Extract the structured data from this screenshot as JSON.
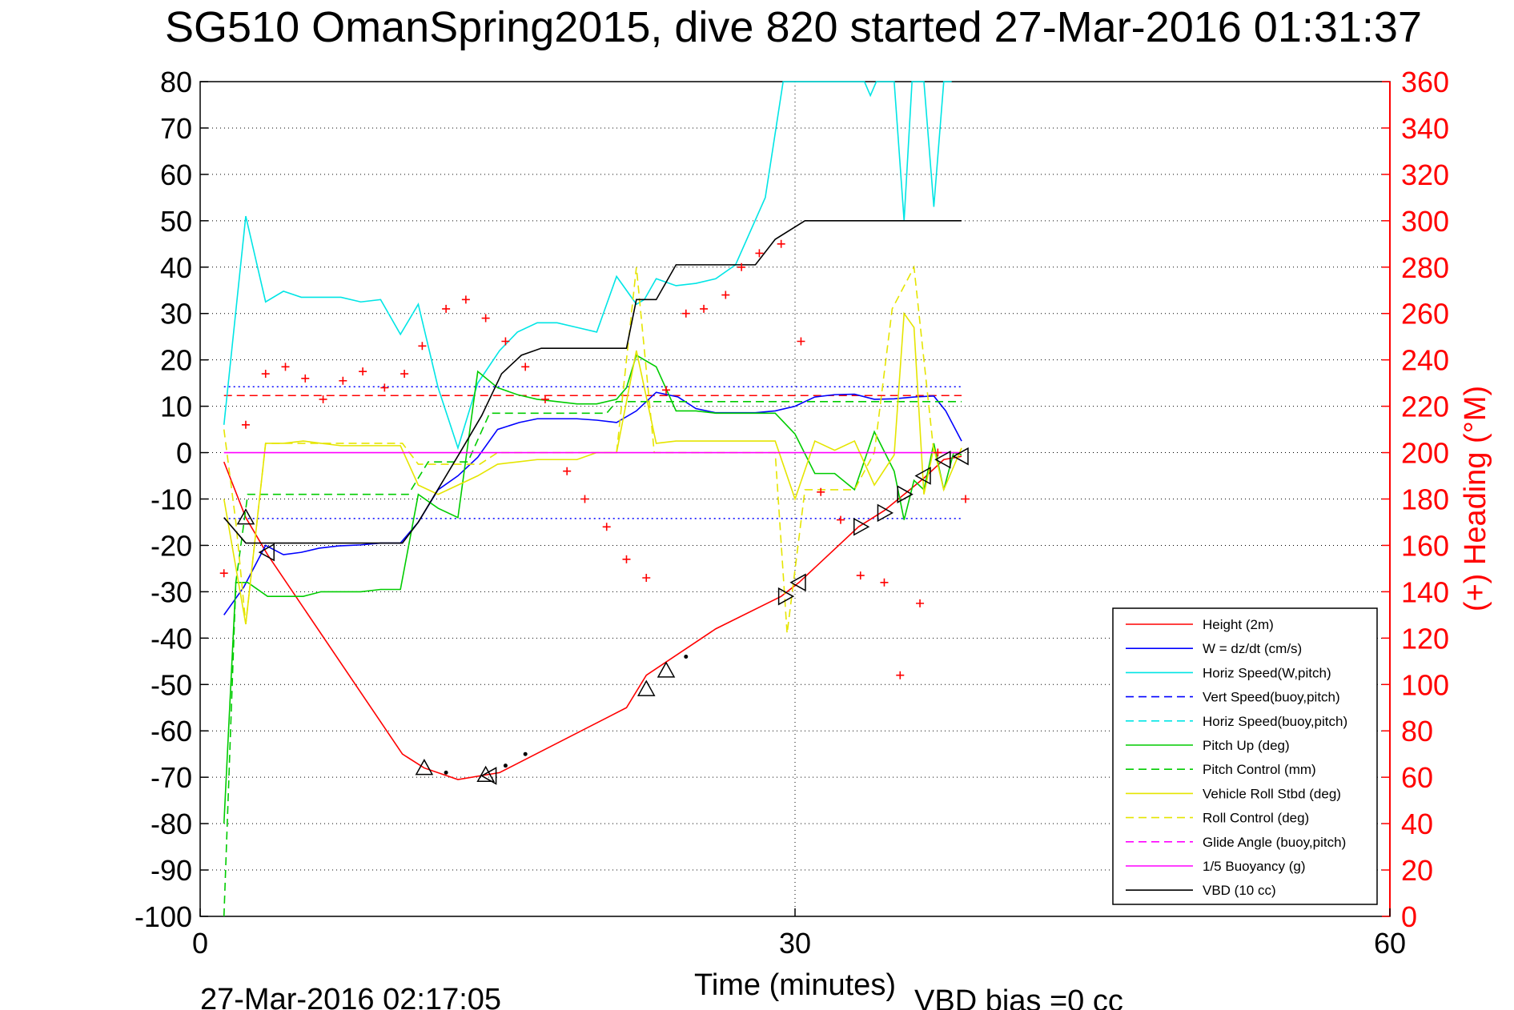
{
  "chart_data": {
    "type": "line",
    "title": "SG510 OmanSpring2015, dive 820 started 27-Mar-2016 01:31:37",
    "xlabel": "Time (minutes)",
    "ylabel_right": "(+) Heading (°M)",
    "footer_timestamp": "27-Mar-2016 02:17:05",
    "footer_note": "VBD bias =0 cc",
    "xlim": [
      0,
      60
    ],
    "ylim_left": [
      -100,
      80
    ],
    "ylim_right": [
      0,
      360
    ],
    "x_ticks": [
      0,
      30,
      60
    ],
    "y_ticks_left": [
      80,
      70,
      60,
      50,
      40,
      30,
      20,
      10,
      0,
      -10,
      -20,
      -30,
      -40,
      -50,
      -60,
      -70,
      -80,
      -90,
      -100
    ],
    "y_ticks_right": [
      360,
      340,
      320,
      300,
      280,
      260,
      240,
      220,
      200,
      180,
      160,
      140,
      120,
      100,
      80,
      60,
      40,
      20,
      0
    ],
    "grid": true,
    "legend_placement": "bottom-right",
    "colors": {
      "height": "#ff0000",
      "w": "#0000ff",
      "horiz_speed": "#00e5e5",
      "pitch": "#00cc00",
      "roll": "#e5e500",
      "glide": "#ff00ff",
      "vbd": "#000000",
      "right_axis": "#ff0000"
    },
    "series": [
      {
        "name": "Height (2m)",
        "color": "#ff0000",
        "dash": "solid",
        "x": [
          1.2,
          2.3,
          3.4,
          10.2,
          11.3,
          13.0,
          15.1,
          21.5,
          22.5,
          26.0,
          29.3,
          30.2,
          33.2,
          34.5,
          35.5,
          36.5,
          37.5,
          38.4
        ],
        "y": [
          -2,
          -14,
          -22,
          -65,
          -68,
          -70.5,
          -69,
          -55,
          -48,
          -38,
          -31,
          -28,
          -16,
          -12.5,
          -9,
          -5.5,
          -1.5,
          -0.8
        ]
      },
      {
        "name": "W = dz/dt (cm/s)",
        "color": "#0000ff",
        "dash": "solid",
        "x": [
          1.2,
          2.2,
          3.3,
          4.2,
          5.1,
          6.0,
          7.0,
          8.1,
          9.1,
          10.1,
          11.0,
          12.0,
          13.0,
          14.0,
          15.0,
          16.1,
          17.0,
          18.0,
          19.0,
          20.0,
          21.0,
          22.0,
          23.0,
          24.1,
          25.0,
          26.0,
          27.0,
          28.0,
          29.0,
          30.0,
          31.0,
          32.0,
          33.0,
          34.0,
          35.0,
          36.0,
          37.0,
          37.6,
          38.4
        ],
        "y": [
          -35,
          -29,
          -20,
          -22,
          -21.5,
          -20.6,
          -20.1,
          -19.9,
          -19.5,
          -19.5,
          -15,
          -8,
          -5,
          -1,
          5,
          6.5,
          7.3,
          7.3,
          7.3,
          7,
          6.5,
          9,
          13,
          12,
          9.5,
          8.6,
          8.6,
          8.6,
          9,
          10,
          12,
          12.5,
          12.6,
          11.5,
          11.6,
          12,
          12.2,
          9,
          2.5
        ]
      },
      {
        "name": "Horiz Speed(W,pitch)",
        "color": "#00e5e5",
        "dash": "solid",
        "x": [
          1.2,
          2.3,
          3.3,
          4.2,
          5.1,
          6.1,
          7.1,
          8.1,
          9.1,
          10.1,
          11.0,
          12.0,
          13.0,
          14.0,
          15.1,
          16.0,
          17.0,
          18.0,
          19.0,
          20.0,
          21.0,
          22.0,
          22.4,
          23.0,
          24.0,
          25.0,
          26.0,
          27.0,
          28.5,
          29.4,
          29.9,
          33.5,
          33.8,
          34.1,
          34.6,
          35.0,
          35.5,
          35.9,
          36.5,
          37.0,
          37.5,
          37.9
        ],
        "y": [
          6,
          51,
          32.5,
          34.8,
          33.5,
          33.5,
          33.5,
          32.5,
          33,
          25.5,
          32,
          14,
          1,
          15,
          22,
          26,
          28,
          28,
          27,
          26,
          38,
          32,
          33,
          37.5,
          36,
          36.5,
          37.5,
          40.5,
          55,
          80,
          80,
          80,
          77,
          80,
          80,
          80,
          50,
          80,
          80,
          53,
          80,
          80
        ]
      },
      {
        "name": "Vert Speed(buoy,pitch)",
        "color": "#0000ff",
        "dash": "dashed",
        "x": [],
        "y": []
      },
      {
        "name": "Horiz Speed(buoy,pitch)",
        "color": "#00e5e5",
        "dash": "dashed",
        "x": [],
        "y": []
      },
      {
        "name": "Pitch Up (deg)",
        "color": "#00cc00",
        "dash": "solid",
        "x": [
          1.2,
          1.8,
          2.4,
          3.4,
          4.2,
          5.2,
          6.1,
          7.1,
          8.1,
          9.1,
          10.1,
          11.0,
          12.0,
          13.0,
          14.0,
          15.0,
          16.0,
          17.0,
          18.0,
          19.0,
          20.0,
          21.0,
          21.5,
          22.0,
          23.0,
          24.0,
          25.0,
          26.0,
          27.0,
          28.0,
          29.0,
          30.0,
          31.0,
          32.0,
          33.0,
          34.0,
          35.0,
          35.5,
          36.0,
          36.5,
          37.0,
          37.5,
          38.0,
          38.4
        ],
        "y": [
          -80,
          -28,
          -28,
          -31,
          -31,
          -31,
          -30,
          -30,
          -30,
          -29.5,
          -29.5,
          -9,
          -12,
          -14,
          17.5,
          14,
          12.5,
          11.5,
          11,
          10.5,
          10.5,
          11.5,
          14,
          21,
          18.5,
          9,
          9,
          8.5,
          8.5,
          8.5,
          8.5,
          4,
          -4.5,
          -4.5,
          -8,
          4.5,
          -4,
          -14.5,
          -6,
          -8,
          2,
          -8,
          0,
          -0.5
        ]
      },
      {
        "name": "Pitch Control (mm)",
        "color": "#00cc00",
        "dash": "dashed",
        "x": [
          1.2,
          1.8,
          2.4,
          10.5,
          11.5,
          13.5,
          14.6,
          20.5,
          21.0,
          38.4
        ],
        "y": [
          -100,
          -28,
          -9,
          -9,
          -2,
          -2,
          8.5,
          8.5,
          11,
          11
        ]
      },
      {
        "name": "Vehicle Roll Stbd (deg)",
        "color": "#e5e500",
        "dash": "solid",
        "x": [
          1.2,
          2.3,
          3.3,
          4.2,
          5.2,
          6.1,
          7.1,
          8.1,
          9.1,
          10.1,
          11.0,
          12.0,
          13.0,
          14.0,
          15.0,
          16.0,
          17.0,
          18.0,
          19.0,
          20.0,
          21.0,
          22.0,
          23.0,
          24.0,
          25.0,
          26.0,
          27.0,
          28.0,
          29.0,
          30.0,
          31.0,
          32.0,
          33.0,
          34.0,
          35.0,
          35.5,
          36.0,
          36.5,
          37.0,
          37.5,
          38.4
        ],
        "y": [
          -10,
          -37,
          2,
          2,
          2.5,
          2,
          1.5,
          1.5,
          1.5,
          1.5,
          -7,
          -9,
          -7,
          -5,
          -2.5,
          -2,
          -1.5,
          -1.5,
          -1.5,
          0,
          0,
          22,
          2,
          2.5,
          2.5,
          2.5,
          2.5,
          2.5,
          2.5,
          -10,
          2.5,
          0.5,
          2.5,
          -7,
          -0.5,
          30,
          27,
          -9,
          1,
          -8,
          1
        ]
      },
      {
        "name": "Roll Control (deg)",
        "color": "#e5e500",
        "dash": "dashed",
        "x": [
          1.2,
          1.8,
          2.3,
          3.3,
          10.2,
          11.0,
          14.1,
          15.0,
          20.0,
          21.0,
          22.0,
          22.9,
          28.0,
          29.0,
          29.6,
          30.5,
          33.0,
          34.0,
          34.9,
          36.0,
          37.0,
          38.4
        ],
        "y": [
          5,
          -15,
          -37,
          2,
          2,
          -2.5,
          -2.5,
          0,
          0,
          0,
          40,
          0,
          0,
          0,
          -39,
          -8,
          -8,
          0,
          31,
          40,
          0,
          0
        ]
      },
      {
        "name": "Glide Angle (buoy,pitch)",
        "color": "#ff00ff",
        "dash": "dashed",
        "x": [],
        "y": []
      },
      {
        "name": "1/5 Buoyancy (g)",
        "color": "#ff00ff",
        "dash": "solid",
        "x": [
          1.2,
          38.4
        ],
        "y": [
          0,
          0
        ]
      },
      {
        "name": "VBD (10 cc)",
        "color": "#000000",
        "dash": "solid",
        "x": [
          1.2,
          2.3,
          10.2,
          11.0,
          13.1,
          14.2,
          15.2,
          16.2,
          17.2,
          20.0,
          21.5,
          22.0,
          23.0,
          24.0,
          25.0,
          28.0,
          29.0,
          30.5,
          38.4
        ],
        "y": [
          -14,
          -19.5,
          -19.5,
          -15,
          0,
          8,
          17,
          21,
          22.5,
          22.5,
          22.5,
          33,
          33,
          40.5,
          40.5,
          40.5,
          46,
          50,
          50
        ]
      }
    ],
    "reference_lines": [
      {
        "axis": "left",
        "y": 12.3,
        "color": "#ff0000",
        "dash": "dashed"
      },
      {
        "axis": "left",
        "y": 14.2,
        "color": "#0000ff",
        "dash": "dotted"
      },
      {
        "axis": "left",
        "y": -14.2,
        "color": "#0000ff",
        "dash": "dotted"
      }
    ],
    "heading_points": {
      "name": "(+) Heading",
      "axis": "right",
      "color": "#ff0000",
      "x": [
        1.2,
        2.3,
        3.3,
        4.3,
        5.3,
        6.2,
        7.2,
        8.2,
        9.3,
        10.3,
        11.2,
        12.4,
        13.4,
        14.4,
        15.4,
        16.4,
        17.4,
        18.5,
        19.4,
        20.5,
        21.5,
        22.5,
        23.5,
        24.5,
        25.4,
        26.5,
        27.3,
        28.2,
        29.3,
        30.3,
        31.3,
        32.3,
        33.3,
        34.5,
        35.3,
        36.3,
        37.2,
        38.6
      ],
      "y": [
        148,
        212,
        234,
        237,
        232,
        223,
        231,
        235,
        228,
        234,
        246,
        262,
        266,
        258,
        248,
        237,
        223,
        192,
        180,
        168,
        154,
        146,
        227,
        260,
        262,
        268,
        280,
        286,
        290,
        248,
        183,
        171,
        147,
        144,
        104,
        135,
        200,
        180
      ]
    },
    "height_markers": {
      "up_triangles": [
        {
          "x": 2.3,
          "y": -14
        },
        {
          "x": 11.3,
          "y": -68
        },
        {
          "x": 14.4,
          "y": -69.5
        },
        {
          "x": 22.5,
          "y": -51
        },
        {
          "x": 23.5,
          "y": -47
        }
      ],
      "right_triangles": [
        {
          "x": 29.5,
          "y": -31
        },
        {
          "x": 33.3,
          "y": -16
        },
        {
          "x": 34.5,
          "y": -13
        },
        {
          "x": 35.5,
          "y": -9
        }
      ],
      "left_triangles": [
        {
          "x": 3.4,
          "y": -21.5
        },
        {
          "x": 14.6,
          "y": -69.7
        },
        {
          "x": 30.2,
          "y": -28
        },
        {
          "x": 36.5,
          "y": -5
        },
        {
          "x": 37.5,
          "y": -1.5
        },
        {
          "x": 38.4,
          "y": -0.8
        }
      ],
      "dots": [
        {
          "x": 12.4,
          "y": -69
        },
        {
          "x": 15.4,
          "y": -67.5
        },
        {
          "x": 16.4,
          "y": -65
        },
        {
          "x": 24.5,
          "y": -44
        }
      ]
    }
  }
}
